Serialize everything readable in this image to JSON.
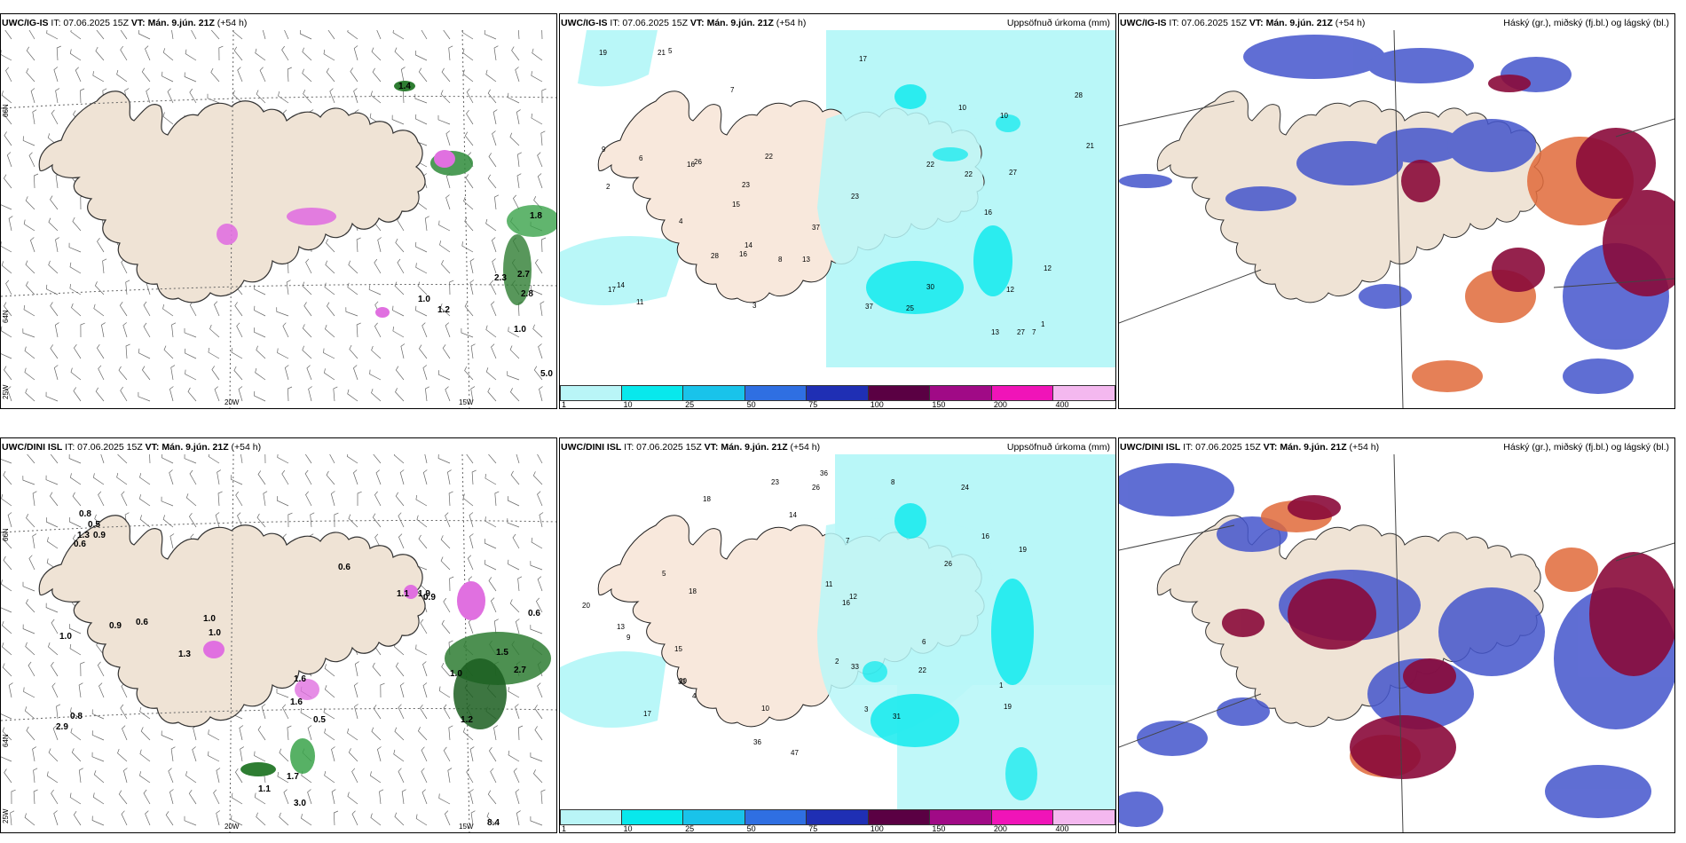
{
  "rows": [
    {
      "model": "UWC/IG-IS",
      "it_label": "IT: 07.06.2025 15Z",
      "vt_label": "VT: Mán. 9.jún. 21Z",
      "lead": "(+54 h)",
      "wind_labels": [
        "1.4",
        "1.8",
        "2.3",
        "2.7",
        "2.8",
        "1.0",
        "1.2",
        "1.0",
        "5.0"
      ],
      "precip_values": [
        "37",
        "16",
        "21",
        "16",
        "7",
        "7",
        "13",
        "15",
        "16",
        "22",
        "27",
        "17",
        "19",
        "13",
        "23",
        "30",
        "23",
        "21",
        "28",
        "22",
        "27",
        "26",
        "25",
        "28",
        "12",
        "22",
        "37",
        "14",
        "10",
        "17",
        "14",
        "8",
        "11",
        "12",
        "10",
        "9",
        "6",
        "5",
        "4",
        "3",
        "2",
        "1"
      ]
    },
    {
      "model": "UWC/DINI ISL",
      "it_label": "IT: 07.06.2025 15Z",
      "vt_label": "VT: Mán. 9.jún. 21Z",
      "lead": "(+54 h)",
      "wind_labels": [
        "0.8",
        "0.5",
        "1.3",
        "0.9",
        "0.6",
        "1.0",
        "0.9",
        "0.6",
        "0.6",
        "1.0",
        "1.0",
        "1.3",
        "1.1",
        "0.9",
        "0.6",
        "1.5",
        "2.7",
        "1.2",
        "1.6",
        "0.5",
        "1.6",
        "1.7",
        "1.1",
        "3.0",
        "1.9",
        "1.0",
        "0.8",
        "2.9",
        "8.4"
      ],
      "precip_values": [
        "17",
        "24",
        "18",
        "16",
        "33",
        "18",
        "15",
        "30",
        "19",
        "26",
        "13",
        "36",
        "22",
        "16",
        "47",
        "23",
        "19",
        "20",
        "33",
        "36",
        "31",
        "26",
        "14",
        "12",
        "11",
        "10",
        "9",
        "8",
        "7",
        "6",
        "5",
        "4",
        "3",
        "2",
        "1"
      ]
    }
  ],
  "panels": {
    "precip_title": "Uppsöfnuð úrkoma (mm)",
    "cloud_title": "Háský (gr.), miðský (fj.bl.) og lágský (bl.)"
  },
  "axis_labels": {
    "lat66": "66N",
    "lat64": "64N",
    "lon25": "25W",
    "lon20": "20W",
    "lon15": "15W"
  },
  "colorbar": {
    "ticks": [
      "1",
      "10",
      "25",
      "50",
      "75",
      "100",
      "150",
      "200",
      "400"
    ],
    "colors": [
      "#b9f5f7",
      "#08e8ec",
      "#19c3ea",
      "#2f6fe2",
      "#1f2fb4",
      "#5a0043",
      "#a00a86",
      "#f014b8",
      "#f4b8ef"
    ]
  },
  "colors": {
    "land": "#efe3d5",
    "precip_light": "#b9f7f8",
    "cloud_high": "#8a0a3a",
    "cloud_mid": "#e06a3a",
    "cloud_low": "#4455cc"
  }
}
